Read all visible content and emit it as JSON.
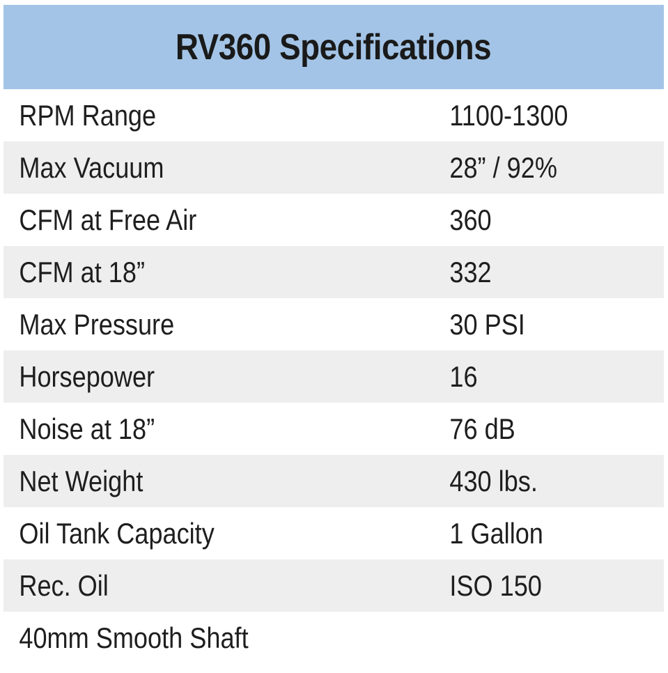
{
  "title": "RV360 Specifications",
  "rows": [
    {
      "label": "RPM Range",
      "value": "1100-1300"
    },
    {
      "label": "Max Vacuum",
      "value": "28” / 92%"
    },
    {
      "label": "CFM at Free Air",
      "value": "360"
    },
    {
      "label": "CFM at 18”",
      "value": "332"
    },
    {
      "label": "Max Pressure",
      "value": "30 PSI"
    },
    {
      "label": "Horsepower",
      "value": "16"
    },
    {
      "label": "Noise at 18”",
      "value": "76 dB"
    },
    {
      "label": "Net Weight",
      "value": "430 lbs."
    },
    {
      "label": "Oil Tank Capacity",
      "value": "1 Gallon"
    },
    {
      "label": "Rec. Oil",
      "value": "ISO 150"
    },
    {
      "label": "40mm Smooth Shaft",
      "value": ""
    }
  ],
  "colors": {
    "header_bg": "#a3c4e6",
    "shaded_row_bg": "#eeeeee",
    "text": "#1e1e1e"
  }
}
